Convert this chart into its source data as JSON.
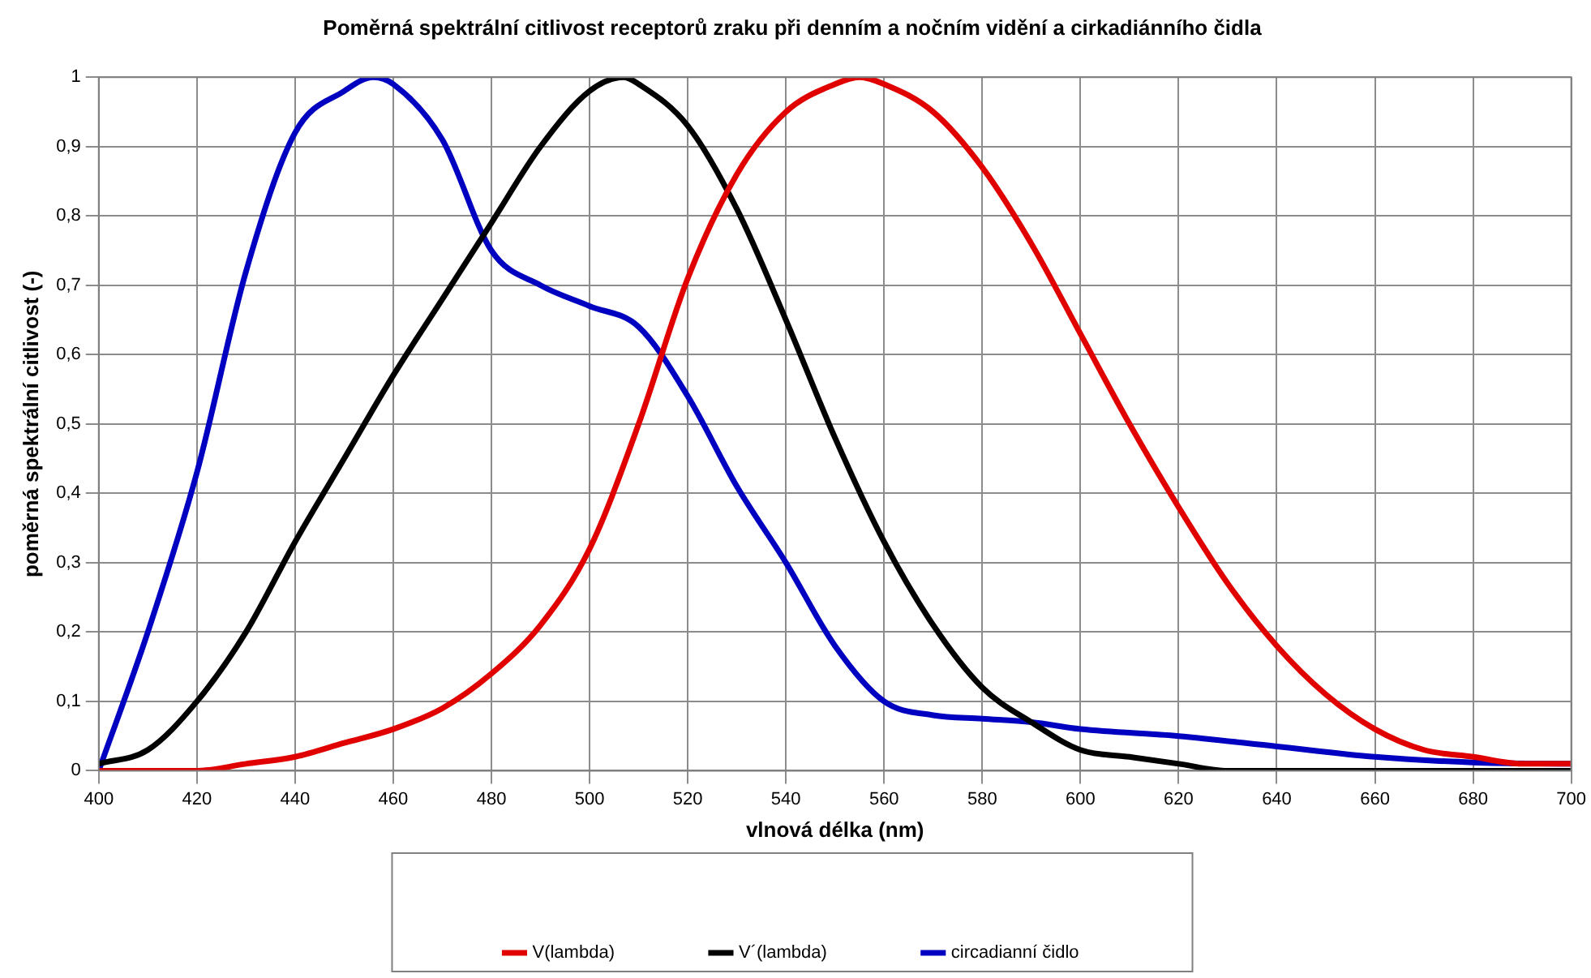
{
  "chart_data": {
    "type": "line",
    "title": "Poměrná spektrální citlivost receptorů zraku při denním a nočním vidění a cirkadiánního čidla",
    "xlabel": "vlnová délka (nm)",
    "ylabel": "poměrná spektrální citlivost (-)",
    "xlim": [
      400,
      700
    ],
    "xticks": [
      400,
      420,
      440,
      460,
      480,
      500,
      520,
      540,
      560,
      580,
      600,
      620,
      640,
      660,
      680,
      700
    ],
    "ylim": [
      0,
      1
    ],
    "yticks": [
      0,
      {
        "value": 0.1,
        "label": "0,1"
      },
      {
        "value": 0.2,
        "label": "0,2"
      },
      {
        "value": 0.3,
        "label": "0,3"
      },
      {
        "value": 0.4,
        "label": "0,4"
      },
      {
        "value": 0.5,
        "label": "0,5"
      },
      {
        "value": 0.6,
        "label": "0,6"
      },
      {
        "value": 0.7,
        "label": "0,7"
      },
      {
        "value": 0.8,
        "label": "0,8"
      },
      {
        "value": 0.9,
        "label": "0,9"
      },
      1
    ],
    "grid": true,
    "legend": "bottom",
    "marker": "none",
    "line_style": "solid",
    "series": [
      {
        "name": "V(lambda)",
        "color": "#e00000",
        "x": [
          400,
          410,
          420,
          430,
          440,
          450,
          460,
          470,
          480,
          490,
          500,
          510,
          520,
          530,
          540,
          550,
          555,
          560,
          570,
          580,
          590,
          600,
          610,
          620,
          630,
          640,
          650,
          660,
          670,
          680,
          690,
          700
        ],
        "values": [
          0,
          0,
          0,
          0.01,
          0.02,
          0.04,
          0.06,
          0.09,
          0.14,
          0.21,
          0.32,
          0.5,
          0.71,
          0.86,
          0.95,
          0.99,
          1,
          0.99,
          0.95,
          0.87,
          0.76,
          0.63,
          0.5,
          0.38,
          0.27,
          0.18,
          0.11,
          0.06,
          0.03,
          0.02,
          0.01,
          0.01
        ]
      },
      {
        "name": "V´(lambda)",
        "color": "#000000",
        "x": [
          400,
          410,
          420,
          430,
          440,
          450,
          460,
          470,
          480,
          490,
          500,
          507,
          510,
          520,
          530,
          540,
          550,
          560,
          570,
          580,
          590,
          600,
          610,
          620,
          630,
          640,
          660,
          680,
          700
        ],
        "values": [
          0.01,
          0.03,
          0.1,
          0.2,
          0.33,
          0.45,
          0.57,
          0.68,
          0.79,
          0.9,
          0.98,
          1,
          0.99,
          0.93,
          0.81,
          0.65,
          0.48,
          0.33,
          0.21,
          0.12,
          0.07,
          0.03,
          0.02,
          0.01,
          0,
          0,
          0,
          0,
          0
        ]
      },
      {
        "name": "circadianní čidlo",
        "color": "#0000c0",
        "x": [
          400,
          410,
          420,
          430,
          440,
          450,
          456,
          460,
          470,
          480,
          490,
          500,
          510,
          520,
          530,
          540,
          550,
          560,
          570,
          580,
          590,
          600,
          620,
          640,
          660,
          680,
          700
        ],
        "values": [
          0,
          0.2,
          0.43,
          0.72,
          0.92,
          0.98,
          1,
          0.99,
          0.91,
          0.75,
          0.7,
          0.67,
          0.64,
          0.54,
          0.41,
          0.3,
          0.18,
          0.1,
          0.08,
          0.075,
          0.07,
          0.06,
          0.05,
          0.035,
          0.02,
          0.012,
          0.01
        ]
      }
    ]
  }
}
